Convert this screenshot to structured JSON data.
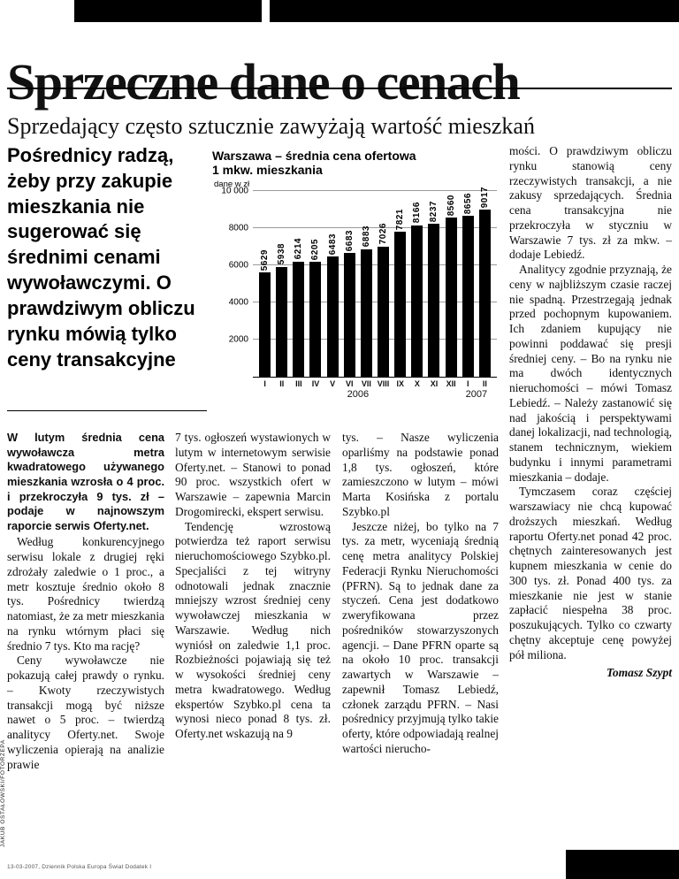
{
  "headline": "Sprzeczne dane o cenach",
  "subheadline": "Sprzedający często sztucznie zawyżają wartość mieszkań",
  "standfirst": "Pośrednicy radzą, żeby przy zakupie mieszkania nie sugerować się średnimi cenami wywoławczymi. O prawdziwym obliczu rynku mówią tylko ceny transakcyjne",
  "chart_data": {
    "type": "bar",
    "title": "Warszawa – średnia cena ofertowa 1 mkw. mieszkania",
    "title_lines": [
      "Warszawa – średnia cena ofertowa",
      "1 mkw. mieszkania"
    ],
    "unit_label": "dane w zł",
    "categories": [
      "I",
      "II",
      "III",
      "IV",
      "V",
      "VI",
      "VII",
      "VIII",
      "IX",
      "X",
      "XI",
      "XII",
      "I",
      "II"
    ],
    "values": [
      5629,
      5938,
      6214,
      6205,
      6483,
      6683,
      6883,
      7026,
      7821,
      8166,
      8237,
      8560,
      8656,
      9017
    ],
    "year_groups": [
      {
        "label": "2006",
        "count": 12
      },
      {
        "label": "2007",
        "count": 2
      }
    ],
    "ylim": [
      0,
      10000
    ],
    "ytick_interval": 2000,
    "ytick_labels": [
      "2000",
      "4000",
      "6000",
      "8000",
      "10 000"
    ],
    "bar_color": "#000000",
    "grid": true,
    "legend": "none"
  },
  "columns": {
    "col1": {
      "lead": "W lutym średnia cena wywoławcza metra kwadratowego używanego mieszkania wzrosła o 4 proc. i przekroczyła 9 tys. zł – podaje w najnowszym raporcie serwis Oferty.net.",
      "paragraphs": [
        "Według konkurencyjnego serwisu lokale z drugiej ręki zdrożały zaledwie o 1 proc., a metr kosztuje średnio około 8 tys. Pośrednicy twierdzą natomiast, że za metr mieszkania na rynku wtórnym płaci się średnio 7 tys. Kto ma rację?",
        "Ceny wywoławcze nie pokazują całej prawdy o rynku. – Kwoty rzeczywistych transakcji mogą być niższe nawet o 5 proc. – twierdzą analitycy Oferty.net. Swoje wyliczenia opierają na analizie prawie"
      ]
    },
    "col2": {
      "paragraphs": [
        "7 tys. ogłoszeń wystawionych w lutym w internetowym serwisie Oferty.net. – Stanowi to ponad 90 proc. wszystkich ofert w Warszawie – zapewnia Marcin Drogomirecki, ekspert serwisu.",
        "Tendencję wzrostową potwierdza też raport serwisu nieruchomościowego Szybko.pl. Specjaliści z tej witryny odnotowali jednak znacznie mniejszy wzrost średniej ceny wywoławczej mieszkania w Warszawie. Według nich wyniósł on zaledwie 1,1 proc. Rozbieżności pojawiają się też w wysokości średniej ceny metra kwadratowego. Według ekspertów Szybko.pl cena ta wynosi nieco ponad 8 tys. zł. Oferty.net wskazują na 9"
      ]
    },
    "col3": {
      "paragraphs": [
        "tys. – Nasze wyliczenia oparliśmy na podstawie ponad 1,8 tys. ogłoszeń, które zamieszczono w lutym – mówi Marta Kosińska z portalu Szybko.pl",
        "Jeszcze niżej, bo tylko na 7 tys. za metr, wyceniają średnią cenę metra analitycy Polskiej Federacji Rynku Nieruchomości (PFRN). Są to jednak dane za styczeń. Cena jest dodatkowo zweryfikowana przez pośredników stowarzyszonych agencji. – Dane PFRN oparte są na około 10 proc. transakcji zawartych w Warszawie – zapewnił Tomasz Lebiedź, członek zarządu PFRN. – Nasi pośrednicy przyjmują tylko takie oferty, które odpowiadają realnej wartości nierucho-"
      ]
    },
    "col4": {
      "paragraphs": [
        "mości. O prawdziwym obliczu rynku stanowią ceny rzeczywistych transakcji, a nie zakusy sprzedających. Średnia cena transakcyjna nie przekroczyła w styczniu w Warszawie 7 tys. zł za mkw. – dodaje Lebiedź.",
        "Analitycy zgodnie przyznają, że ceny w najbliższym czasie raczej nie spadną. Przestrzegają jednak przed pochopnym kupowaniem. Ich zdaniem kupujący nie powinni poddawać się presji średniej ceny. – Bo na rynku nie ma dwóch identycznych nieruchomości – mówi Tomasz Lebiedź. – Należy zastanowić się nad jakością i perspektywami danej lokalizacji, nad technologią, stanem technicznym, wiekiem budynku i innymi parametrami mieszkania – dodaje.",
        "Tymczasem coraz częściej warszawiacy nie chcą kupować droższych mieszkań. Według raportu Oferty.net ponad 42 proc. chętnych zainteresowanych jest kupnem mieszkania w cenie do 300 tys. zł. Ponad 400 tys. za mieszkanie nie jest w stanie zapłacić niespełna 38 proc. poszukujących. Tylko co czwarty chętny akceptuje cenę powyżej pół miliona."
      ],
      "author": "Tomasz Szypt"
    }
  },
  "credit_vertical": "JAKUB OSTAŁOWSKI/FOTORZEPA",
  "imprint": "13-03-2007, Dziennik Polska Europa Świat Dodatek I"
}
